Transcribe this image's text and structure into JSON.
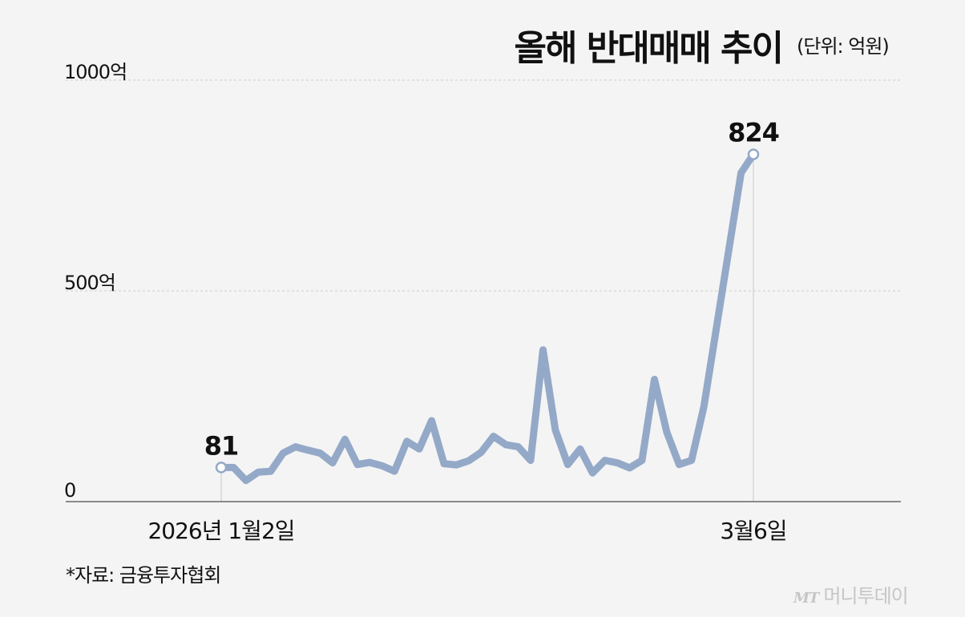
{
  "header": {
    "title": "올해 반대매매 추이",
    "unit": "(단위: 억원)"
  },
  "footer": {
    "source": "*자료: 금융투자협회",
    "brand_mark": "MT",
    "brand_name": "머니투데이"
  },
  "colors": {
    "line": "#94a9c8",
    "grid": "#cccccc",
    "axis": "#666666",
    "background": "#f4f4f4"
  },
  "chart_data": {
    "type": "line",
    "title": "올해 반대매매 추이",
    "xlabel": "",
    "ylabel": "",
    "ylim": [
      0,
      1000
    ],
    "yticks": [
      {
        "value": 0,
        "label": "0"
      },
      {
        "value": 500,
        "label": "500억"
      },
      {
        "value": 1000,
        "label": "1000억"
      }
    ],
    "xtick_labels": [
      {
        "index": 0,
        "label": "2026년 1월2일"
      },
      {
        "index": 43,
        "label": "3월6일"
      }
    ],
    "grid": true,
    "series": [
      {
        "values": [
          81,
          81,
          50,
          70,
          72,
          115,
          130,
          122,
          115,
          92,
          148,
          88,
          93,
          85,
          72,
          143,
          125,
          192,
          90,
          87,
          97,
          117,
          155,
          135,
          130,
          98,
          360,
          170,
          88,
          125,
          68,
          98,
          92,
          80,
          98,
          290,
          165,
          88,
          98,
          225,
          780,
          824
        ],
        "x_index": [
          0,
          1,
          2,
          3,
          4,
          5,
          6,
          7,
          8,
          9,
          10,
          11,
          12,
          13,
          14,
          15,
          16,
          17,
          18,
          19,
          20,
          21,
          22,
          23,
          24,
          25,
          26,
          27,
          28,
          29,
          30,
          31,
          32,
          33,
          34,
          35,
          36,
          37,
          38,
          39,
          42,
          43
        ],
        "annotations": [
          {
            "index": 0,
            "label": "81"
          },
          {
            "index": 43,
            "label": "824"
          }
        ]
      }
    ]
  }
}
